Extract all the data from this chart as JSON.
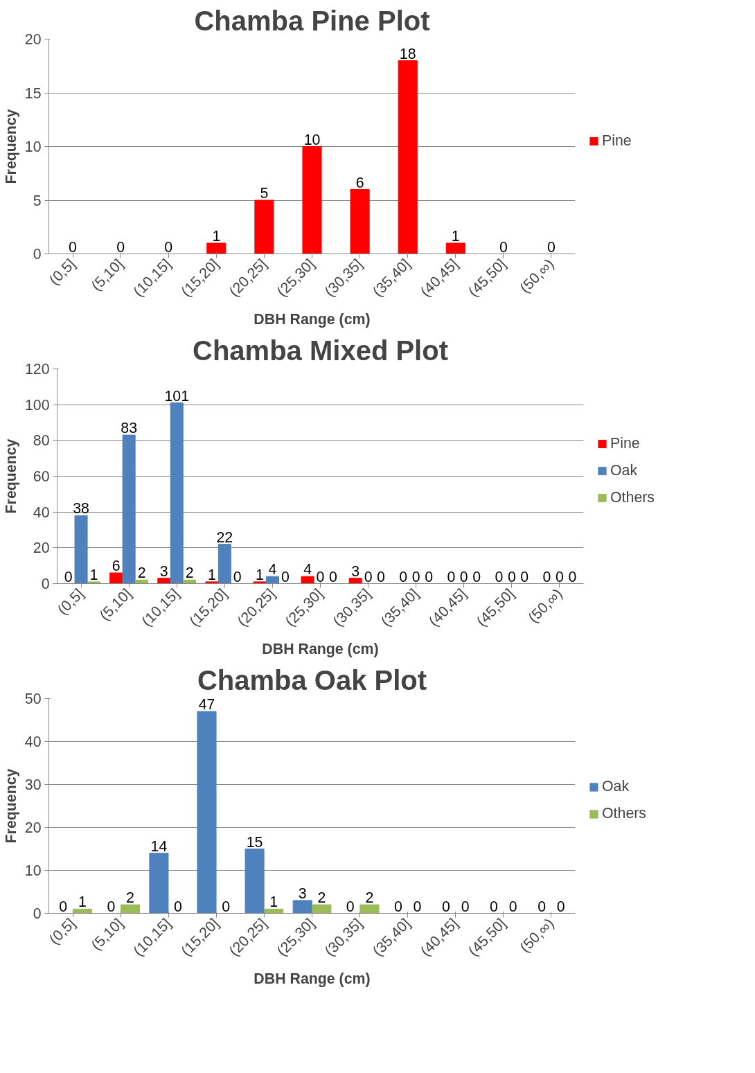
{
  "chart_data": [
    {
      "type": "bar",
      "title": "Chamba Pine Plot",
      "xlabel": "DBH Range (cm)",
      "ylabel": "Frequency",
      "categories": [
        "(0,5]",
        "(5,10]",
        "(10,15]",
        "(15,20]",
        "(20,25]",
        "(25,30]",
        "(30,35]",
        "(35,40]",
        "(40,45]",
        "(45,50]",
        "(50,∞)"
      ],
      "series": [
        {
          "name": "Pine",
          "color": "#ff0000",
          "values": [
            0,
            0,
            0,
            1,
            5,
            10,
            6,
            18,
            1,
            0,
            0
          ]
        }
      ],
      "ylim": [
        0,
        20
      ],
      "yticks": [
        0,
        5,
        10,
        15,
        20
      ],
      "grid": "y",
      "legend": "right",
      "data_labels": true
    },
    {
      "type": "bar",
      "title": "Chamba Mixed Plot",
      "xlabel": "DBH Range (cm)",
      "ylabel": "Frequency",
      "categories": [
        "(0,5]",
        "(5,10]",
        "(10,15]",
        "(15,20]",
        "(20,25]",
        "(25,30]",
        "(30,35]",
        "(35,40]",
        "(40,45]",
        "(45,50]",
        "(50,∞)"
      ],
      "series": [
        {
          "name": "Pine",
          "color": "#ff0000",
          "values": [
            0,
            6,
            3,
            1,
            1,
            4,
            3,
            0,
            0,
            0,
            0
          ]
        },
        {
          "name": "Oak",
          "color": "#4f81bd",
          "values": [
            38,
            83,
            101,
            22,
            4,
            0,
            0,
            0,
            0,
            0,
            0
          ]
        },
        {
          "name": "Others",
          "color": "#9bbb59",
          "values": [
            1,
            2,
            2,
            0,
            0,
            0,
            0,
            0,
            0,
            0,
            0
          ]
        }
      ],
      "ylim": [
        0,
        120
      ],
      "yticks": [
        0,
        20,
        40,
        60,
        80,
        100,
        120
      ],
      "grid": "y",
      "legend": "right",
      "data_labels": true
    },
    {
      "type": "bar",
      "title": "Chamba Oak Plot",
      "xlabel": "DBH Range (cm)",
      "ylabel": "Frequency",
      "categories": [
        "(0,5]",
        "(5,10]",
        "(10,15]",
        "(15,20]",
        "(20,25]",
        "(25,30]",
        "(30,35]",
        "(35,40]",
        "(40,45]",
        "(45,50]",
        "(50,∞)"
      ],
      "series": [
        {
          "name": "Oak",
          "color": "#4f81bd",
          "values": [
            0,
            0,
            14,
            47,
            15,
            3,
            0,
            0,
            0,
            0,
            0
          ]
        },
        {
          "name": "Others",
          "color": "#9bbb59",
          "values": [
            1,
            2,
            0,
            0,
            1,
            2,
            2,
            0,
            0,
            0,
            0
          ]
        }
      ],
      "ylim": [
        0,
        50
      ],
      "yticks": [
        0,
        10,
        20,
        30,
        40,
        50
      ],
      "grid": "y",
      "legend": "right",
      "data_labels": true
    }
  ]
}
